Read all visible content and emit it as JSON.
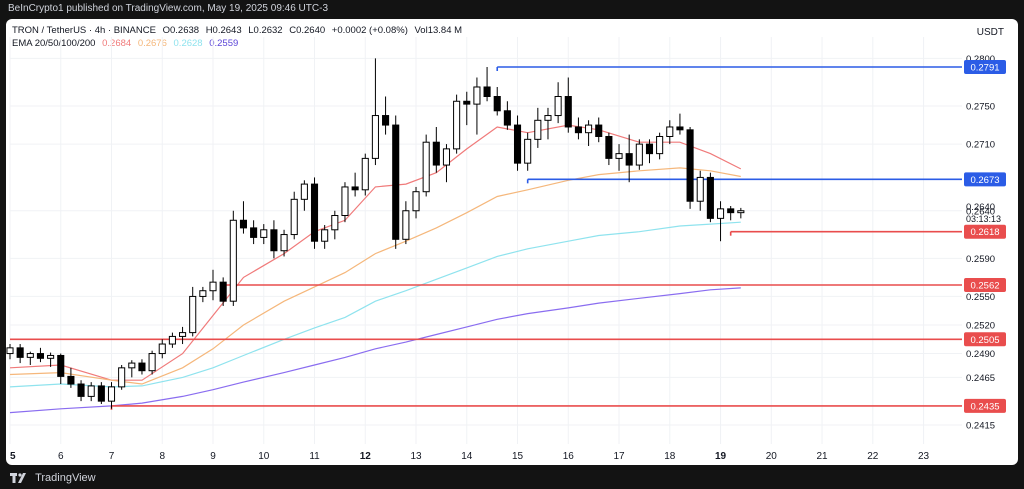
{
  "header": {
    "publisher": "BeInCrypto1 published on TradingView.com, May 19, 2025 09:46 UTC-3"
  },
  "footer": {
    "brand": "TradingView"
  },
  "legend": {
    "symbol": "TRON / TetherUS · 4h · BINANCE",
    "o": "O0.2638",
    "h": "H0.2643",
    "l": "L0.2632",
    "c": "C0.2640",
    "change": "+0.0002 (+0.08%)",
    "vol": "Vol13.84 M",
    "ema_label": "EMA 20/50/100/200",
    "ema_values": [
      "0.2684",
      "0.2676",
      "0.2628",
      "0.2559"
    ]
  },
  "currency": "USDT",
  "colors": {
    "up": "#ffffff",
    "down": "#000000",
    "ema20": "#f07a7a",
    "ema50": "#f5b77b",
    "ema100": "#8fe3ee",
    "ema200": "#8a6df0",
    "resistance": "#2b5ce6",
    "support": "#e94d4d"
  },
  "chart_data": {
    "type": "candlestick",
    "title": "TRON / TetherUS · 4h · BINANCE",
    "ylim": [
      0.2395,
      0.2812
    ],
    "xlim": [
      5,
      24
    ],
    "x_ticks": [
      "5",
      "6",
      "7",
      "8",
      "9",
      "10",
      "11",
      "12",
      "13",
      "14",
      "15",
      "16",
      "17",
      "18",
      "19",
      "20",
      "21",
      "22",
      "23"
    ],
    "y_ticks": [
      "0.2415",
      "0.2465",
      "0.2490",
      "0.2520",
      "0.2550",
      "0.2590",
      "0.2640",
      "0.2710",
      "0.2750",
      "0.2800"
    ],
    "current_price": {
      "value": "0.2640",
      "countdown": "03:13:13"
    },
    "levels": [
      {
        "label": "0.2791",
        "value": 0.2791,
        "color": "#2b5ce6",
        "from": 14.6
      },
      {
        "label": "0.2673",
        "value": 0.2673,
        "color": "#2b5ce6",
        "from": 15.2
      },
      {
        "label": "0.2618",
        "value": 0.2618,
        "color": "#e94d4d",
        "from": 19.2
      },
      {
        "label": "0.2562",
        "value": 0.2562,
        "color": "#e94d4d",
        "from": 9.2
      },
      {
        "label": "0.2505",
        "value": 0.2505,
        "color": "#e94d4d",
        "from": 5.0
      },
      {
        "label": "0.2435",
        "value": 0.2435,
        "color": "#e94d4d",
        "from": 7.0
      }
    ],
    "candles": [
      [
        5.0,
        0.249,
        0.25,
        0.2484,
        0.2496
      ],
      [
        5.2,
        0.2496,
        0.25,
        0.248,
        0.2486
      ],
      [
        5.4,
        0.2486,
        0.2492,
        0.2478,
        0.249
      ],
      [
        5.6,
        0.249,
        0.2496,
        0.2481,
        0.2485
      ],
      [
        5.8,
        0.2485,
        0.2491,
        0.2476,
        0.2488
      ],
      [
        6.0,
        0.2488,
        0.249,
        0.2458,
        0.2466
      ],
      [
        6.2,
        0.2466,
        0.2475,
        0.2454,
        0.2458
      ],
      [
        6.4,
        0.2458,
        0.2462,
        0.244,
        0.2445
      ],
      [
        6.6,
        0.2445,
        0.246,
        0.244,
        0.2456
      ],
      [
        6.8,
        0.2456,
        0.246,
        0.2437,
        0.244
      ],
      [
        7.0,
        0.244,
        0.246,
        0.2432,
        0.2455
      ],
      [
        7.2,
        0.2455,
        0.2478,
        0.2452,
        0.2475
      ],
      [
        7.4,
        0.2475,
        0.2483,
        0.2465,
        0.248
      ],
      [
        7.6,
        0.248,
        0.2484,
        0.2468,
        0.2472
      ],
      [
        7.8,
        0.2472,
        0.2493,
        0.2468,
        0.249
      ],
      [
        8.0,
        0.249,
        0.2505,
        0.2485,
        0.25
      ],
      [
        8.2,
        0.25,
        0.2512,
        0.2496,
        0.2508
      ],
      [
        8.4,
        0.2508,
        0.2518,
        0.25,
        0.2512
      ],
      [
        8.6,
        0.2512,
        0.256,
        0.2508,
        0.255
      ],
      [
        8.8,
        0.255,
        0.256,
        0.2544,
        0.2556
      ],
      [
        9.0,
        0.2556,
        0.2578,
        0.2546,
        0.2565
      ],
      [
        9.2,
        0.2565,
        0.257,
        0.254,
        0.2545
      ],
      [
        9.4,
        0.2545,
        0.264,
        0.254,
        0.263
      ],
      [
        9.6,
        0.263,
        0.265,
        0.2616,
        0.2622
      ],
      [
        9.8,
        0.2622,
        0.263,
        0.2605,
        0.2612
      ],
      [
        10.0,
        0.2612,
        0.2626,
        0.2605,
        0.262
      ],
      [
        10.2,
        0.262,
        0.263,
        0.259,
        0.2598
      ],
      [
        10.4,
        0.2598,
        0.262,
        0.2592,
        0.2615
      ],
      [
        10.6,
        0.2615,
        0.266,
        0.261,
        0.2652
      ],
      [
        10.8,
        0.2652,
        0.2672,
        0.264,
        0.2668
      ],
      [
        11.0,
        0.2668,
        0.2675,
        0.26,
        0.2608
      ],
      [
        11.2,
        0.2608,
        0.2625,
        0.26,
        0.262
      ],
      [
        11.4,
        0.262,
        0.264,
        0.261,
        0.2635
      ],
      [
        11.6,
        0.2635,
        0.267,
        0.2628,
        0.2665
      ],
      [
        11.8,
        0.2665,
        0.268,
        0.2655,
        0.2662
      ],
      [
        12.0,
        0.2662,
        0.27,
        0.2656,
        0.2695
      ],
      [
        12.2,
        0.2695,
        0.28,
        0.2688,
        0.274
      ],
      [
        12.4,
        0.274,
        0.276,
        0.272,
        0.273
      ],
      [
        12.6,
        0.273,
        0.274,
        0.26,
        0.261
      ],
      [
        12.8,
        0.261,
        0.265,
        0.2605,
        0.264
      ],
      [
        13.0,
        0.264,
        0.2665,
        0.2632,
        0.266
      ],
      [
        13.2,
        0.266,
        0.272,
        0.2655,
        0.2712
      ],
      [
        13.4,
        0.2712,
        0.2728,
        0.268,
        0.2688
      ],
      [
        13.6,
        0.2688,
        0.271,
        0.267,
        0.2705
      ],
      [
        13.8,
        0.2705,
        0.2762,
        0.27,
        0.2755
      ],
      [
        14.0,
        0.2755,
        0.2765,
        0.273,
        0.2752
      ],
      [
        14.2,
        0.2752,
        0.278,
        0.272,
        0.277
      ],
      [
        14.4,
        0.277,
        0.2791,
        0.2755,
        0.276
      ],
      [
        14.6,
        0.276,
        0.277,
        0.274,
        0.2745
      ],
      [
        14.8,
        0.2745,
        0.2755,
        0.2725,
        0.273
      ],
      [
        15.0,
        0.273,
        0.274,
        0.2682,
        0.269
      ],
      [
        15.2,
        0.269,
        0.2722,
        0.2682,
        0.2715
      ],
      [
        15.4,
        0.2715,
        0.2748,
        0.2706,
        0.2735
      ],
      [
        15.6,
        0.2735,
        0.2748,
        0.2715,
        0.274
      ],
      [
        15.8,
        0.274,
        0.2775,
        0.2732,
        0.276
      ],
      [
        16.0,
        0.276,
        0.278,
        0.2722,
        0.2728
      ],
      [
        16.2,
        0.2728,
        0.2738,
        0.2715,
        0.2722
      ],
      [
        16.4,
        0.2722,
        0.2735,
        0.2708,
        0.273
      ],
      [
        16.6,
        0.273,
        0.2738,
        0.2712,
        0.2718
      ],
      [
        16.8,
        0.2718,
        0.2722,
        0.2688,
        0.2695
      ],
      [
        17.0,
        0.2695,
        0.271,
        0.2682,
        0.27
      ],
      [
        17.2,
        0.27,
        0.272,
        0.267,
        0.2688
      ],
      [
        17.4,
        0.2688,
        0.2715,
        0.2683,
        0.271
      ],
      [
        17.6,
        0.271,
        0.2715,
        0.269,
        0.27
      ],
      [
        17.8,
        0.27,
        0.2722,
        0.2694,
        0.2718
      ],
      [
        18.0,
        0.2718,
        0.2735,
        0.271,
        0.2728
      ],
      [
        18.2,
        0.2728,
        0.2742,
        0.272,
        0.2725
      ],
      [
        18.4,
        0.2725,
        0.2728,
        0.2642,
        0.265
      ],
      [
        18.6,
        0.265,
        0.2682,
        0.264,
        0.2675
      ],
      [
        18.8,
        0.2675,
        0.268,
        0.2628,
        0.2632
      ],
      [
        19.0,
        0.2632,
        0.265,
        0.2608,
        0.2642
      ],
      [
        19.2,
        0.2642,
        0.2645,
        0.263,
        0.2638
      ],
      [
        19.4,
        0.2638,
        0.2643,
        0.2632,
        0.264
      ]
    ],
    "series": [
      {
        "name": "EMA 20",
        "color": "#f07a7a",
        "points": [
          [
            5.0,
            0.2475
          ],
          [
            6.0,
            0.2478
          ],
          [
            7.0,
            0.2462
          ],
          [
            7.6,
            0.2462
          ],
          [
            8.4,
            0.249
          ],
          [
            9.0,
            0.253
          ],
          [
            9.6,
            0.257
          ],
          [
            10.4,
            0.2595
          ],
          [
            11.0,
            0.2618
          ],
          [
            11.6,
            0.263
          ],
          [
            12.2,
            0.2665
          ],
          [
            12.8,
            0.2668
          ],
          [
            13.4,
            0.268
          ],
          [
            14.0,
            0.2705
          ],
          [
            14.6,
            0.2728
          ],
          [
            15.2,
            0.2722
          ],
          [
            16.0,
            0.273
          ],
          [
            16.6,
            0.2725
          ],
          [
            17.4,
            0.2712
          ],
          [
            18.2,
            0.2712
          ],
          [
            18.8,
            0.27
          ],
          [
            19.4,
            0.2684
          ]
        ]
      },
      {
        "name": "EMA 50",
        "color": "#f5b77b",
        "points": [
          [
            5.0,
            0.2468
          ],
          [
            6.0,
            0.247
          ],
          [
            7.0,
            0.2462
          ],
          [
            7.6,
            0.2458
          ],
          [
            8.4,
            0.2475
          ],
          [
            9.0,
            0.2495
          ],
          [
            9.6,
            0.252
          ],
          [
            10.4,
            0.2545
          ],
          [
            11.0,
            0.256
          ],
          [
            11.6,
            0.2575
          ],
          [
            12.2,
            0.2595
          ],
          [
            12.8,
            0.2608
          ],
          [
            13.4,
            0.2622
          ],
          [
            14.0,
            0.2638
          ],
          [
            14.6,
            0.2655
          ],
          [
            15.2,
            0.2662
          ],
          [
            16.0,
            0.2672
          ],
          [
            16.6,
            0.2678
          ],
          [
            17.4,
            0.2682
          ],
          [
            18.2,
            0.2685
          ],
          [
            18.8,
            0.2682
          ],
          [
            19.4,
            0.2676
          ]
        ]
      },
      {
        "name": "EMA 100",
        "color": "#8fe3ee",
        "points": [
          [
            5.0,
            0.2455
          ],
          [
            6.0,
            0.2458
          ],
          [
            7.0,
            0.2455
          ],
          [
            7.6,
            0.2456
          ],
          [
            8.4,
            0.2465
          ],
          [
            9.0,
            0.2475
          ],
          [
            9.6,
            0.2488
          ],
          [
            10.4,
            0.2505
          ],
          [
            11.0,
            0.2517
          ],
          [
            11.6,
            0.2528
          ],
          [
            12.2,
            0.2545
          ],
          [
            12.8,
            0.2556
          ],
          [
            13.4,
            0.2568
          ],
          [
            14.0,
            0.258
          ],
          [
            14.6,
            0.2592
          ],
          [
            15.2,
            0.26
          ],
          [
            16.0,
            0.2608
          ],
          [
            16.6,
            0.2614
          ],
          [
            17.4,
            0.2618
          ],
          [
            18.2,
            0.2624
          ],
          [
            18.8,
            0.2626
          ],
          [
            19.4,
            0.2628
          ]
        ]
      },
      {
        "name": "EMA 200",
        "color": "#8a6df0",
        "points": [
          [
            5.0,
            0.2428
          ],
          [
            6.0,
            0.2432
          ],
          [
            7.0,
            0.2435
          ],
          [
            7.6,
            0.2438
          ],
          [
            8.4,
            0.2445
          ],
          [
            9.0,
            0.2452
          ],
          [
            9.6,
            0.246
          ],
          [
            10.4,
            0.247
          ],
          [
            11.0,
            0.2478
          ],
          [
            11.6,
            0.2486
          ],
          [
            12.2,
            0.2495
          ],
          [
            12.8,
            0.2502
          ],
          [
            13.4,
            0.251
          ],
          [
            14.0,
            0.2518
          ],
          [
            14.6,
            0.2526
          ],
          [
            15.2,
            0.2532
          ],
          [
            16.0,
            0.2538
          ],
          [
            16.6,
            0.2543
          ],
          [
            17.4,
            0.2548
          ],
          [
            18.2,
            0.2553
          ],
          [
            18.8,
            0.2557
          ],
          [
            19.4,
            0.2559
          ]
        ]
      }
    ]
  }
}
